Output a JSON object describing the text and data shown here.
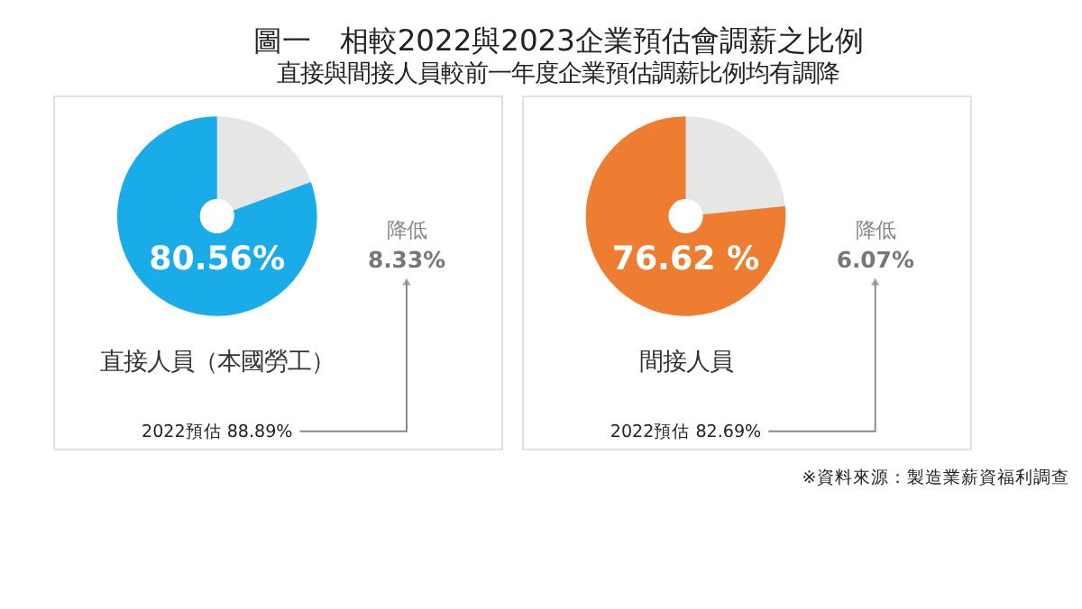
{
  "chart_data": [
    {
      "type": "donut",
      "title": "圖一　相較2022與2023企業預估會調薪之比例",
      "subtitle": "直接與間接人員較前一年度企業預估調薪比例均有調降",
      "xlabel": "直接人員（本國勞工）",
      "categories": [
        null,
        null
      ],
      "values": [
        19.44,
        80.56
      ],
      "colors": [
        "#e6e6e6",
        "#1aace8"
      ],
      "value_labels": [
        null,
        "80.56%"
      ],
      "annotations": [
        "降低",
        "8.33%",
        "2022預估 88.89%"
      ]
    },
    {
      "type": "donut",
      "xlabel": "間接人員",
      "categories": [
        null,
        null
      ],
      "values": [
        23.38,
        76.62
      ],
      "colors": [
        "#e6e6e6",
        "#ee7d31"
      ],
      "value_labels": [
        null,
        "76.62 %"
      ],
      "annotations": [
        "降低",
        "6.07%",
        "2022預估 82.69%",
        "※資料來源：製造業薪資福利調查"
      ]
    }
  ]
}
